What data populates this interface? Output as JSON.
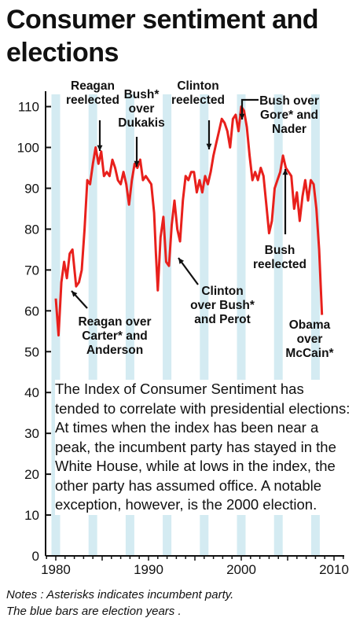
{
  "title": "Consumer sentiment and elections",
  "description": "The Index of Consumer Sentiment has tended to correlate with presidential elections: At times when the index has been near a peak, the incumbent party has stayed in the White House, while at lows in the index, the other party has assumed office. A notable exception, however, is the 2000 election.",
  "notes": [
    "Notes : Asterisks indicates incumbent party.",
    "The blue bars are election years ."
  ],
  "colors": {
    "line": "#e8201c",
    "election_bar": "#d4ebf2",
    "axis": "#111111"
  },
  "chart_data": {
    "type": "line",
    "title": "Consumer sentiment and elections",
    "xlim": [
      1978.9,
      2011.1
    ],
    "ylim": [
      0,
      113
    ],
    "x_ticks": [
      1980,
      1990,
      2000,
      2010
    ],
    "y_ticks": [
      0,
      10,
      20,
      30,
      40,
      50,
      60,
      70,
      80,
      90,
      100,
      110
    ],
    "grid": false,
    "election_years": [
      1980,
      1984,
      1988,
      1992,
      1996,
      2000,
      2004,
      2008
    ],
    "series": [
      {
        "x": [
          1980.0,
          1980.3,
          1980.6,
          1980.9,
          1981.2,
          1981.5,
          1981.8,
          1982.2,
          1982.5,
          1982.8,
          1983.1,
          1983.4,
          1983.7,
          1984.0,
          1984.3,
          1984.6,
          1984.9,
          1985.2,
          1985.5,
          1985.8,
          1986.1,
          1986.4,
          1986.7,
          1987.0,
          1987.3,
          1987.6,
          1987.9,
          1988.2,
          1988.5,
          1988.8,
          1989.1,
          1989.4,
          1989.7,
          1990.0,
          1990.3,
          1990.6,
          1990.8,
          1991.0,
          1991.3,
          1991.6,
          1991.9,
          1992.2,
          1992.5,
          1992.8,
          1993.1,
          1993.4,
          1993.7,
          1994.0,
          1994.3,
          1994.6,
          1994.9,
          1995.2,
          1995.5,
          1995.8,
          1996.1,
          1996.4,
          1996.7,
          1997.0,
          1997.3,
          1997.6,
          1997.9,
          1998.2,
          1998.5,
          1998.8,
          1999.1,
          1999.4,
          1999.7,
          2000.0,
          2000.3,
          2000.6,
          2000.9,
          2001.2,
          2001.5,
          2001.8,
          2002.1,
          2002.4,
          2002.7,
          2003.0,
          2003.3,
          2003.6,
          2003.9,
          2004.2,
          2004.5,
          2004.8,
          2005.1,
          2005.4,
          2005.7,
          2006.0,
          2006.3,
          2006.6,
          2006.9,
          2007.2,
          2007.5,
          2007.8,
          2008.1,
          2008.4,
          2008.7
        ],
        "y": [
          63,
          54,
          67,
          72,
          68,
          74,
          75,
          66,
          67,
          70,
          80,
          92,
          91,
          96,
          100,
          96,
          99,
          93,
          94,
          93,
          97,
          95,
          92,
          91,
          94,
          91,
          86,
          92,
          96,
          95,
          97,
          92,
          93,
          92,
          91,
          84,
          74,
          65,
          78,
          83,
          72,
          71,
          81,
          87,
          80,
          77,
          87,
          93,
          92,
          94,
          94,
          89,
          92,
          89,
          93,
          91,
          94,
          98,
          101,
          104,
          107,
          106,
          104,
          100,
          107,
          108,
          104,
          110,
          109,
          105,
          98,
          92,
          94,
          92,
          95,
          93,
          86,
          79,
          82,
          90,
          92,
          94,
          98,
          95,
          94,
          93,
          85,
          89,
          82,
          88,
          92,
          87,
          92,
          91,
          85,
          75,
          59
        ]
      }
    ],
    "annotations": [
      {
        "text": "Reagan reelected",
        "x": 1984.5
      },
      {
        "text": "Bush* over Dukakis",
        "x": 1988.8
      },
      {
        "text": "Clinton reelected",
        "x": 1996.9
      },
      {
        "text": "Bush over Gore* and Nader",
        "x": 2000.8
      },
      {
        "text": "Reagan over Carter* and Anderson",
        "x": 1981.9
      },
      {
        "text": "Clinton over Bush* and Perot",
        "x": 1992.8
      },
      {
        "text": "Bush reelected",
        "x": 2004.9
      },
      {
        "text": "Obama over McCain*",
        "x": 2008.6
      }
    ]
  }
}
